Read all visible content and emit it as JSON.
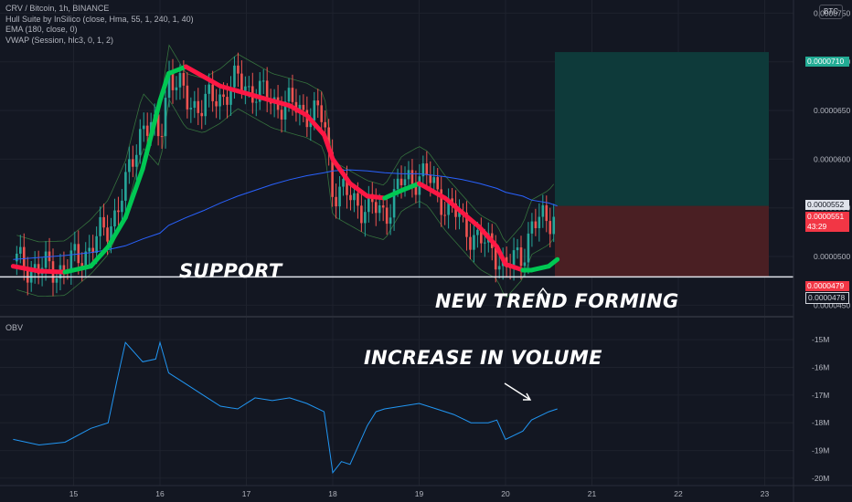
{
  "header": {
    "title": "CRV / Bitcoin, 1h, BINANCE",
    "indicators": [
      "Hull Suite by InSilico (close, Hma, 55, 1, 240, 1, 40)",
      "EMA (180, close, 0)",
      "VWAP (Session, hlc3, 0, 1, 2)"
    ],
    "currency": "BTC"
  },
  "annotations": {
    "support": "SUPPORT",
    "trend": "NEW TREND FORMING",
    "volume": "INCREASE IN VOLUME"
  },
  "price_tags": {
    "target": "0.0000710",
    "ema": "0.0000552",
    "current": "0.0000551",
    "countdown": "43:29",
    "stop": "0.0000479",
    "support": "0.0000478"
  },
  "colors": {
    "background": "#131722",
    "candle_up": "#26a69a",
    "candle_down": "#ef5350",
    "hull_up": "#00c853",
    "hull_down": "#ff1744",
    "ema": "#2962ff",
    "vwap_band": "#4caf50",
    "obv": "#2196f3",
    "profit_zone": "#0e3a3a",
    "loss_zone": "#4a1f23"
  },
  "chart_data": [
    {
      "type": "line",
      "title": "CRV / Bitcoin, 1h, BINANCE",
      "y_axis_labels": [
        "0.0000750",
        "0.0000700",
        "0.0000650",
        "0.0000600",
        "0.0000550",
        "0.0000500",
        "0.0000450"
      ],
      "ylim": [
        4.4e-05,
        7.56e-05
      ],
      "x_axis_labels": [
        "15",
        "16",
        "17",
        "18",
        "19",
        "20",
        "21",
        "22",
        "23"
      ],
      "x": [
        14.3,
        14.6,
        14.9,
        15.2,
        15.4,
        15.6,
        15.8,
        16.0,
        16.1,
        16.3,
        16.5,
        16.7,
        16.9,
        17.1,
        17.3,
        17.5,
        17.7,
        17.9,
        18.0,
        18.2,
        18.4,
        18.6,
        18.8,
        19.0,
        19.1,
        19.3,
        19.5,
        19.7,
        19.9,
        20.0,
        20.2,
        20.3,
        20.5,
        20.6
      ],
      "series": [
        {
          "name": "close",
          "values": [
            4.95e-05,
            4.87e-05,
            4.88e-05,
            5.1e-05,
            5.3e-05,
            5.7e-05,
            6.4e-05,
            6.2e-05,
            6.9e-05,
            6.6e-05,
            6.55e-05,
            6.65e-05,
            6.8e-05,
            6.7e-05,
            6.6e-05,
            6.55e-05,
            6.5e-05,
            6.4e-05,
            5.7e-05,
            5.6e-05,
            5.5e-05,
            5.45e-05,
            5.75e-05,
            5.85e-05,
            5.8e-05,
            5.55e-05,
            5.35e-05,
            5.15e-05,
            5.05e-05,
            4.85e-05,
            5.05e-05,
            5.3e-05,
            5.4e-05,
            5.51e-05
          ]
        },
        {
          "name": "EMA (180, close, 0)",
          "values": [
            4.97e-05,
            4.99e-05,
            5.01e-05,
            5.04e-05,
            5.07e-05,
            5.11e-05,
            5.18e-05,
            5.24e-05,
            5.32e-05,
            5.4e-05,
            5.47e-05,
            5.55e-05,
            5.62e-05,
            5.68e-05,
            5.74e-05,
            5.79e-05,
            5.83e-05,
            5.86e-05,
            5.88e-05,
            5.89e-05,
            5.88e-05,
            5.86e-05,
            5.85e-05,
            5.85e-05,
            5.84e-05,
            5.82e-05,
            5.79e-05,
            5.75e-05,
            5.7e-05,
            5.66e-05,
            5.62e-05,
            5.58e-05,
            5.55e-05,
            5.52e-05
          ]
        },
        {
          "name": "Hull Suite by InSilico",
          "values": [
            4.9e-05,
            4.85e-05,
            4.84e-05,
            4.9e-05,
            5.1e-05,
            5.4e-05,
            5.9e-05,
            6.6e-05,
            6.88e-05,
            6.95e-05,
            6.85e-05,
            6.75e-05,
            6.7e-05,
            6.65e-05,
            6.6e-05,
            6.55e-05,
            6.45e-05,
            6.25e-05,
            6e-05,
            5.75e-05,
            5.62e-05,
            5.6e-05,
            5.68e-05,
            5.75e-05,
            5.7e-05,
            5.6e-05,
            5.45e-05,
            5.3e-05,
            5.1e-05,
            4.92e-05,
            4.86e-05,
            4.86e-05,
            4.9e-05,
            4.97e-05
          ]
        }
      ],
      "long_position": {
        "entry": 5.52e-05,
        "target": 7.1e-05,
        "stop": 4.79e-05
      },
      "support_level": 4.79e-05
    },
    {
      "type": "line",
      "title": "OBV",
      "y_axis_labels": [
        "-15M",
        "-16M",
        "-17M",
        "-18M",
        "-19M",
        "-20M"
      ],
      "ylim": [
        -20.2,
        -14.6
      ],
      "x_axis_labels": [
        "15",
        "16",
        "17",
        "18",
        "19",
        "20",
        "21",
        "22",
        "23"
      ],
      "x": [
        14.3,
        14.6,
        14.9,
        15.2,
        15.4,
        15.5,
        15.6,
        15.8,
        15.95,
        16.0,
        16.1,
        16.3,
        16.5,
        16.7,
        16.9,
        17.1,
        17.3,
        17.5,
        17.7,
        17.9,
        17.95,
        18.0,
        18.1,
        18.2,
        18.4,
        18.5,
        18.6,
        18.8,
        19.0,
        19.2,
        19.4,
        19.6,
        19.8,
        19.9,
        20.0,
        20.2,
        20.3,
        20.5,
        20.6
      ],
      "series": [
        {
          "name": "OBV",
          "values": [
            -18.6,
            -18.8,
            -18.7,
            -18.2,
            -18.0,
            -16.5,
            -15.1,
            -15.8,
            -15.7,
            -15.1,
            -16.2,
            -16.6,
            -17.0,
            -17.4,
            -17.5,
            -17.1,
            -17.2,
            -17.1,
            -17.3,
            -17.6,
            -18.7,
            -19.8,
            -19.4,
            -19.5,
            -18.1,
            -17.6,
            -17.5,
            -17.4,
            -17.3,
            -17.5,
            -17.7,
            -18.0,
            -18.0,
            -17.9,
            -18.6,
            -18.3,
            -17.9,
            -17.6,
            -17.5
          ]
        }
      ]
    }
  ]
}
